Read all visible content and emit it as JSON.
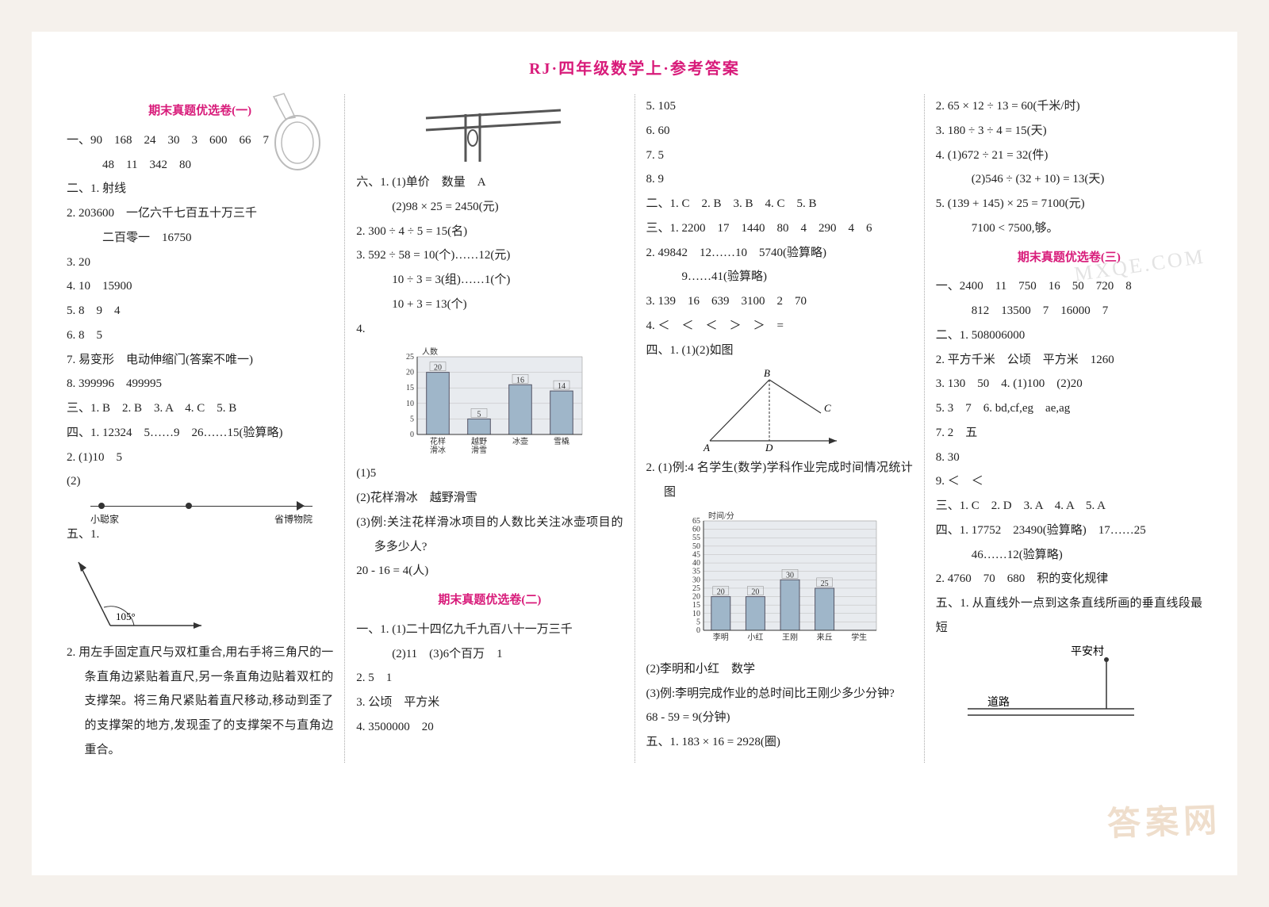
{
  "title": "RJ·四年级数学上·参考答案",
  "watermark": "答案网",
  "wm_url": "MXQE.COM",
  "test1": {
    "title": "期末真题优选卷(一)",
    "q1": "一、90　168　24　30　3　600　66　7",
    "q1b": "48　11　342　80",
    "q2_1": "二、1. 射线",
    "q2_2": "2. 203600　一亿六千七百五十万三千",
    "q2_2b": "二百零一　16750",
    "q2_3": "3. 20",
    "q2_4": "4. 10　15900",
    "q2_5": "5. 8　9　4",
    "q2_6": "6. 8　5",
    "q2_7": "7. 易变形　电动伸缩门(答案不唯一)",
    "q2_8": "8. 399996　499995",
    "q3": "三、1. B　2. B　3. A　4. C　5. B",
    "q4_1": "四、1. 12324　5……9　26……15(验算略)",
    "q4_2": "2. (1)10　5",
    "q4_2b": "(2)",
    "numline": {
      "left_label": "小聪家",
      "right_label": "省博物院"
    },
    "q5_1": "五、1.",
    "angle": {
      "label": "105°",
      "color": "#333"
    },
    "q5_2": "2. 用左手固定直尺与双杠重合,用右手将三角尺的一条直角边紧贴着直尺,另一条直角边贴着双杠的支撑架。将三角尺紧贴着直尺移动,移动到歪了的支撑架的地方,发现歪了的支撑架不与直角边重合。"
  },
  "col2": {
    "q6_1": "六、1. (1)单价　数量　A",
    "q6_1b": "(2)98 × 25 = 2450(元)",
    "q6_2": "2. 300 ÷ 4 ÷ 5 = 15(名)",
    "q6_3": "3. 592 ÷ 58 = 10(个)……12(元)",
    "q6_3b": "10 ÷ 3 = 3(组)……1(个)",
    "q6_3c": "10 + 3 = 13(个)",
    "q6_4": "4.",
    "chart1": {
      "ylabel": "人数",
      "ymax": 25,
      "ystep": 5,
      "categories": [
        "花样\n滑冰",
        "越野\n滑雪",
        "冰壶",
        "雪橇"
      ],
      "values": [
        20,
        5,
        16,
        14
      ],
      "bar_color": "#9fb6c9",
      "bg": "#e8ebef"
    },
    "q6_4_1": "(1)5",
    "q6_4_2": "(2)花样滑冰　越野滑雪",
    "q6_4_3": "(3)例:关注花样滑冰项目的人数比关注冰壶项目的多多少人?",
    "q6_4_3b": "20 - 16 = 4(人)",
    "test2_title": "期末真题优选卷(二)",
    "t2_q1_1": "一、1. (1)二十四亿九千九百八十一万三千",
    "t2_q1_1b": "(2)11　(3)6个百万　1",
    "t2_q1_2": "2. 5　1",
    "t2_q1_3": "3. 公顷　平方米",
    "t2_q1_4": "4. 3500000　20"
  },
  "col3": {
    "l1": "5. 105",
    "l2": "6. 60",
    "l3": "7. 5",
    "l4": "8. 9",
    "q2": "二、1. C　2. B　3. B　4. C　5. B",
    "q3_1": "三、1. 2200　17　1440　80　4　290　4　6",
    "q3_2": "2. 49842　12……10　5740(验算略)",
    "q3_2b": "9……41(验算略)",
    "q3_3": "3. 139　16　639　3100　2　70",
    "q3_4": "4. ＜　＜　＜　＞　＞　=",
    "q4_1": "四、1. (1)(2)如图",
    "triangle": {
      "A": "A",
      "B": "B",
      "C": "C",
      "D": "D"
    },
    "q4_2": "2. (1)例:4 名学生(数学)学科作业完成时间情况统计图",
    "chart2": {
      "ylabel": "时间/分",
      "ymax": 65,
      "ystep": 5,
      "categories": [
        "李明",
        "小红",
        "王刚",
        "来丘",
        "学生"
      ],
      "values": [
        20,
        20,
        30,
        25
      ],
      "bar_color": "#9fb6c9",
      "bg": "#e8ebef"
    },
    "q4_2b": "(2)李明和小红　数学",
    "q4_2c": "(3)例:李明完成作业的总时间比王刚少多少分钟?",
    "q4_2d": "68 - 59 = 9(分钟)",
    "q5_1": "五、1. 183 × 16 = 2928(圈)"
  },
  "col4": {
    "l1": "2. 65 × 12 ÷ 13 = 60(千米/时)",
    "l2": "3. 180 ÷ 3 ÷ 4 = 15(天)",
    "l3": "4. (1)672 ÷ 21 = 32(件)",
    "l3b": "(2)546 ÷ (32 + 10) = 13(天)",
    "l4": "5. (139 + 145) × 25 = 7100(元)",
    "l4b": "7100 < 7500,够。",
    "test3_title": "期末真题优选卷(三)",
    "t3_q1": "一、2400　11　750　16　50　720　8",
    "t3_q1b": "812　13500　7　16000　7",
    "t3_q2_1": "二、1. 508006000",
    "t3_q2_2": "2. 平方千米　公顷　平方米　1260",
    "t3_q2_3": "3. 130　50　4. (1)100　(2)20",
    "t3_q2_5": "5. 3　7　6. bd,cf,eg　ae,ag",
    "t3_q2_7": "7. 2　五",
    "t3_q2_8": "8. 30",
    "t3_q2_9": "9. ＜　＜",
    "t3_q3": "三、1. C　2. D　3. A　4. A　5. A",
    "t3_q4_1": "四、1. 17752　23490(验算略)　17……25",
    "t3_q4_1b": "46……12(验算略)",
    "t3_q4_2": "2. 4760　70　680　积的变化规律",
    "t3_q5_1": "五、1. 从直线外一点到这条直线所画的垂直线段最短",
    "road": {
      "village": "平安村",
      "road": "道路"
    }
  }
}
